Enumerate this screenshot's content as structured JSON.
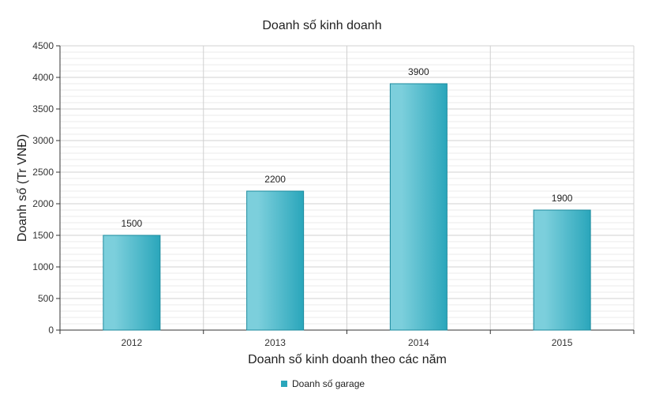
{
  "chart_data": {
    "type": "bar",
    "title": "Doanh số kinh doanh",
    "xlabel": "Doanh số kinh doanh theo các năm",
    "ylabel": "Doanh số (Tr VNĐ)",
    "categories": [
      "2012",
      "2013",
      "2014",
      "2015"
    ],
    "series": [
      {
        "name": "Doanh số garage",
        "values": [
          1500,
          2200,
          3900,
          1900
        ]
      }
    ],
    "ylim": [
      0,
      4500
    ],
    "yticks": [
      0,
      500,
      1000,
      1500,
      2000,
      2500,
      3000,
      3500,
      4000,
      4500
    ],
    "grid": true,
    "legend": "bottom-center",
    "colors": {
      "bar_light": "#7ccfdc",
      "bar_dark": "#2aa6bb",
      "bar_stroke": "#1d8b9e",
      "grid_major": "#d0d0d0",
      "grid_minor": "#ebebeb",
      "axis": "#333333"
    }
  }
}
